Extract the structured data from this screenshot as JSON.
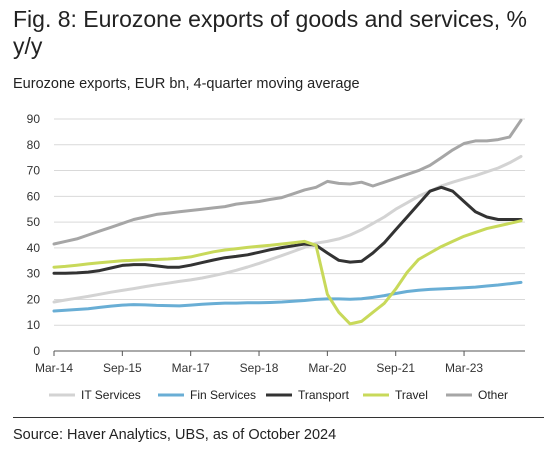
{
  "title": "Fig. 8: Eurozone exports of goods and services, % y/y",
  "subtitle": "Eurozone exports, EUR bn, 4-quarter moving average",
  "source": "Source: Haver Analytics, UBS, as of October 2024",
  "chart_data": {
    "type": "line",
    "title": "Fig. 8: Eurozone exports of goods and services, % y/y",
    "subtitle": "Eurozone exports, EUR bn, 4-quarter moving average",
    "xlabel": "",
    "ylabel": "",
    "ylim": [
      0,
      90
    ],
    "yticks": [
      0,
      10,
      20,
      30,
      40,
      50,
      60,
      70,
      80,
      90
    ],
    "xticks": [
      "Mar-14",
      "Sep-15",
      "Mar-17",
      "Sep-18",
      "Mar-20",
      "Sep-21",
      "Mar-23"
    ],
    "grid": "horizontal",
    "legend_position": "bottom",
    "x": [
      "Mar-14",
      "Jun-14",
      "Sep-14",
      "Dec-14",
      "Mar-15",
      "Jun-15",
      "Sep-15",
      "Dec-15",
      "Mar-16",
      "Jun-16",
      "Sep-16",
      "Dec-16",
      "Mar-17",
      "Jun-17",
      "Sep-17",
      "Dec-17",
      "Mar-18",
      "Jun-18",
      "Sep-18",
      "Dec-18",
      "Mar-19",
      "Jun-19",
      "Sep-19",
      "Dec-19",
      "Mar-20",
      "Jun-20",
      "Sep-20",
      "Dec-20",
      "Mar-21",
      "Jun-21",
      "Sep-21",
      "Dec-21",
      "Mar-22",
      "Jun-22",
      "Sep-22",
      "Dec-22",
      "Mar-23",
      "Jun-23",
      "Sep-23",
      "Dec-23",
      "Mar-24",
      "Jun-24"
    ],
    "series": [
      {
        "name": "IT Services",
        "color": "#d3d3d3",
        "values": [
          19.0,
          19.8,
          20.5,
          21.2,
          22.0,
          22.8,
          23.5,
          24.2,
          25.0,
          25.7,
          26.3,
          27.0,
          27.6,
          28.3,
          29.2,
          30.2,
          31.3,
          32.6,
          34.0,
          35.5,
          37.0,
          38.6,
          40.2,
          41.8,
          42.5,
          43.5,
          45.0,
          47.0,
          49.5,
          52.0,
          55.0,
          57.5,
          60.0,
          62.0,
          64.0,
          65.5,
          66.8,
          68.0,
          69.5,
          71.0,
          73.0,
          75.5
        ]
      },
      {
        "name": "Fin Services",
        "color": "#69aed5",
        "values": [
          15.5,
          15.8,
          16.1,
          16.4,
          16.9,
          17.4,
          17.8,
          18.0,
          17.9,
          17.7,
          17.6,
          17.5,
          17.8,
          18.1,
          18.4,
          18.6,
          18.6,
          18.7,
          18.7,
          18.8,
          19.0,
          19.3,
          19.6,
          20.0,
          20.2,
          20.2,
          20.1,
          20.3,
          20.8,
          21.5,
          22.3,
          23.1,
          23.6,
          23.9,
          24.1,
          24.3,
          24.5,
          24.8,
          25.2,
          25.6,
          26.1,
          26.6
        ]
      },
      {
        "name": "Transport",
        "color": "#333333",
        "values": [
          30.2,
          30.2,
          30.3,
          30.6,
          31.2,
          32.2,
          33.2,
          33.5,
          33.5,
          33.0,
          32.5,
          32.5,
          33.3,
          34.3,
          35.3,
          36.2,
          36.7,
          37.3,
          38.3,
          39.3,
          40.1,
          40.8,
          41.5,
          41.0,
          38.0,
          35.2,
          34.5,
          34.8,
          38.0,
          42.0,
          47.0,
          52.0,
          57.0,
          62.0,
          63.5,
          62.0,
          58.0,
          54.0,
          52.0,
          51.0,
          51.0,
          51.0
        ]
      },
      {
        "name": "Travel",
        "color": "#c8d95a",
        "values": [
          32.5,
          32.8,
          33.3,
          33.8,
          34.2,
          34.6,
          35.0,
          35.2,
          35.4,
          35.5,
          35.7,
          36.0,
          36.5,
          37.5,
          38.5,
          39.2,
          39.7,
          40.2,
          40.6,
          41.0,
          41.5,
          42.0,
          42.5,
          41.0,
          22.0,
          15.0,
          10.5,
          11.5,
          15.0,
          18.5,
          24.0,
          30.5,
          35.5,
          38.0,
          40.5,
          42.5,
          44.5,
          46.0,
          47.5,
          48.5,
          49.5,
          50.5
        ]
      },
      {
        "name": "Other",
        "color": "#a6a6a6",
        "values": [
          41.5,
          42.5,
          43.5,
          45.0,
          46.5,
          48.0,
          49.5,
          51.0,
          52.0,
          53.0,
          53.5,
          54.0,
          54.5,
          55.0,
          55.5,
          56.0,
          57.0,
          57.5,
          58.0,
          58.8,
          59.5,
          61.0,
          62.5,
          63.5,
          65.8,
          65.0,
          64.8,
          65.5,
          64.0,
          65.5,
          67.0,
          68.5,
          70.0,
          72.0,
          75.0,
          78.0,
          80.5,
          81.5,
          81.5,
          82.0,
          83.0,
          89.5
        ]
      }
    ]
  }
}
